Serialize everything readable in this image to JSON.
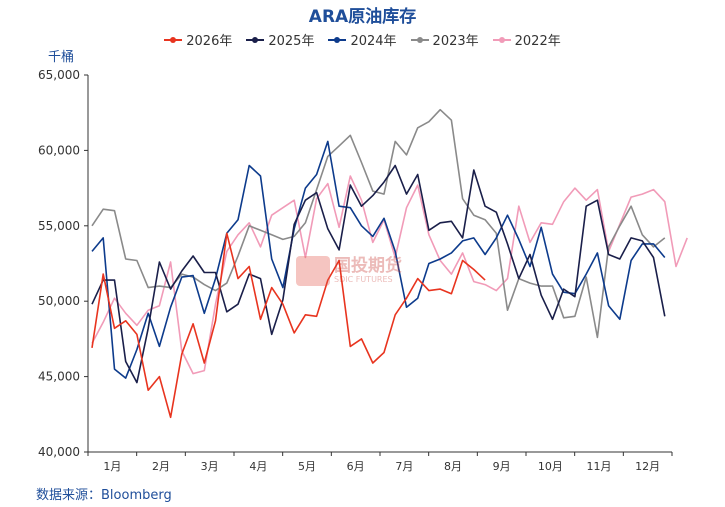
{
  "title": "ARA原油库存",
  "unit": "千桶",
  "source": "数据来源：Bloomberg",
  "watermark": {
    "cn": "国投期货",
    "en": "SDIC FUTURES"
  },
  "chart_data": {
    "type": "line",
    "title": "ARA原油库存",
    "ylabel": "千桶",
    "xlabel": "",
    "ylim": [
      40000,
      65000
    ],
    "yticks": [
      "40,000",
      "45,000",
      "50,000",
      "55,000",
      "60,000",
      "65,000"
    ],
    "months": [
      "1月",
      "2月",
      "3月",
      "4月",
      "5月",
      "6月",
      "7月",
      "8月",
      "9月",
      "10月",
      "11月",
      "12月"
    ],
    "legend_position": "top",
    "grid": false,
    "series": [
      {
        "name": "2026年",
        "color": "#e8341f",
        "values": [
          46900,
          51800,
          48200,
          48700,
          47800,
          44100,
          45000,
          42300,
          46500,
          48500,
          45900,
          48700,
          54500,
          51500,
          52300,
          48800,
          50900,
          49800,
          47900,
          49100,
          49000,
          51400,
          52700,
          47000,
          47500,
          45900,
          46600,
          49100,
          50200,
          51500,
          50700,
          50800,
          50500,
          52700,
          52100,
          51400
        ]
      },
      {
        "name": "2025年",
        "color": "#1a1f4a",
        "values": [
          49800,
          51400,
          51400,
          46000,
          44600,
          48200,
          52600,
          50800,
          52000,
          53000,
          51900,
          51900,
          49300,
          49800,
          51800,
          51500,
          47800,
          50100,
          55100,
          56700,
          57200,
          54800,
          53400,
          57700,
          56300,
          57000,
          57900,
          59000,
          57100,
          58400,
          54700,
          55200,
          55300,
          54200,
          58700,
          56300,
          55900,
          53800,
          51500,
          53100,
          50400,
          48800,
          50800,
          50300,
          56300,
          56700,
          53100,
          52800,
          54200,
          54000,
          52900,
          49000
        ]
      },
      {
        "name": "2024年",
        "color": "#0d3b8c",
        "values": [
          53300,
          54200,
          45500,
          44900,
          46800,
          49200,
          47000,
          49600,
          51600,
          51700,
          49200,
          51500,
          54500,
          55400,
          59000,
          58300,
          52800,
          50900,
          54800,
          57500,
          58400,
          60600,
          56300,
          56200,
          55000,
          54300,
          55500,
          53300,
          49600,
          50200,
          52500,
          52800,
          53200,
          54000,
          54200,
          53100,
          54200,
          55700,
          54100,
          52300,
          54900,
          51800,
          50600,
          50500,
          51800,
          53200,
          49700,
          48800,
          52700,
          53800,
          53800,
          52900
        ]
      },
      {
        "name": "2023年",
        "color": "#8a8a8a",
        "values": [
          55000,
          56100,
          56000,
          52800,
          52700,
          50900,
          51000,
          50900,
          51800,
          51600,
          51100,
          50700,
          51200,
          53000,
          55000,
          54700,
          54400,
          54100,
          54300,
          55200,
          57400,
          59600,
          60300,
          61000,
          59200,
          57300,
          57100,
          60600,
          59700,
          61500,
          61900,
          62700,
          62000,
          56800,
          55700,
          55400,
          54500,
          49400,
          51500,
          51200,
          51000,
          51000,
          48900,
          49000,
          51600,
          47600,
          53600,
          55000,
          56300,
          54400,
          53600,
          54200
        ]
      },
      {
        "name": "2022年",
        "color": "#f19bb8",
        "values": [
          47200,
          48600,
          50200,
          49200,
          48400,
          49400,
          49700,
          52600,
          46700,
          45200,
          45400,
          49800,
          53300,
          54400,
          55200,
          53600,
          55700,
          56200,
          56700,
          52900,
          56800,
          57800,
          54900,
          58300,
          56700,
          53900,
          55400,
          52900,
          56200,
          57700,
          54400,
          52700,
          51800,
          53200,
          51300,
          51100,
          50700,
          51500,
          56300,
          53900,
          55200,
          55100,
          56600,
          57500,
          56700,
          57400,
          53300,
          55100,
          56900,
          57100,
          57400,
          56600,
          52300,
          54200
        ]
      }
    ]
  }
}
